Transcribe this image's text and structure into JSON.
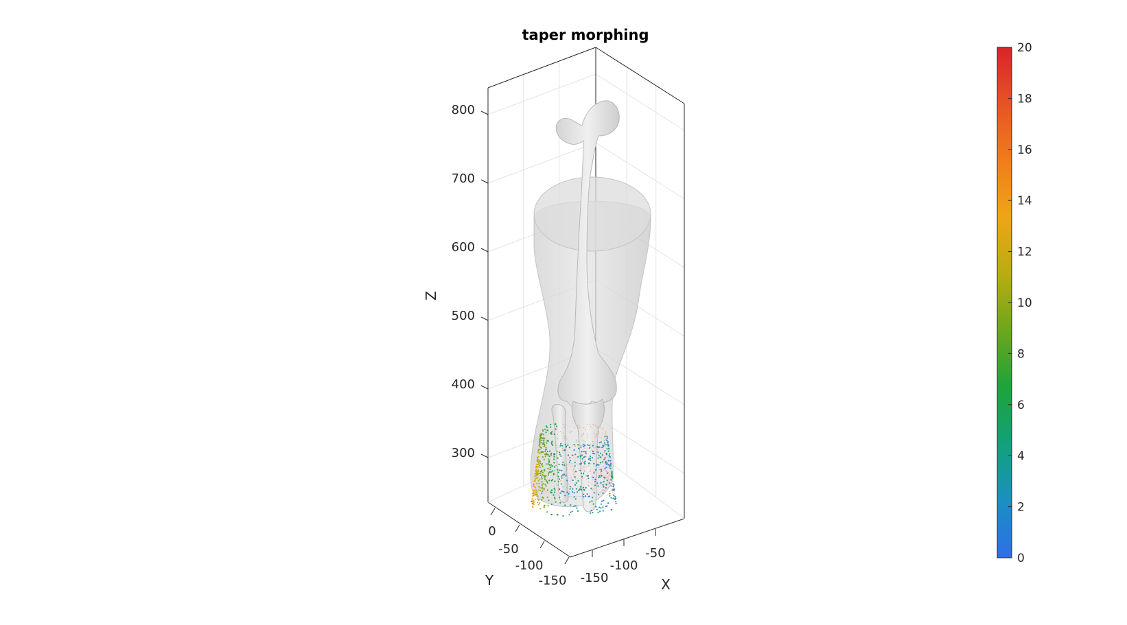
{
  "figure": {
    "title": "taper morphing"
  },
  "colors": {
    "surface_fill": "#d9d9d9",
    "surface_edge": "#bdbdbd",
    "bone_fill": "#e6e6e6",
    "axis": "#262626",
    "grid": "#e3e3e3"
  },
  "chart_data": {
    "type": "scatter",
    "title": "taper morphing",
    "xlabel": "X",
    "ylabel": "Y",
    "zlabel": "Z",
    "x_ticks": [
      "-150",
      "-100",
      "-50"
    ],
    "y_ticks": [
      "0",
      "-50",
      "-100",
      "-150"
    ],
    "z_ticks": [
      "300",
      "400",
      "500",
      "600",
      "700",
      "800"
    ],
    "zlim": [
      230,
      870
    ],
    "grid": true,
    "box": true,
    "colorbar": {
      "label": "",
      "range": [
        0,
        20
      ],
      "ticks": [
        "0",
        "2",
        "4",
        "6",
        "8",
        "10",
        "12",
        "14",
        "16",
        "18",
        "20"
      ],
      "colormap": [
        "#2e6fe8",
        "#1a8fc2",
        "#13a07a",
        "#1da43b",
        "#6aa71c",
        "#b9ac12",
        "#eea516",
        "#ef7d1c",
        "#e65424",
        "#d8242a"
      ]
    },
    "objects": [
      {
        "name": "limb-surface",
        "kind": "transparent-surface"
      },
      {
        "name": "femur",
        "kind": "bone-surface"
      },
      {
        "name": "tibia",
        "kind": "bone-surface"
      },
      {
        "name": "fibula",
        "kind": "bone-surface"
      },
      {
        "name": "taper-displacement-points",
        "kind": "colored-point-cloud",
        "value_range": [
          0,
          20
        ]
      }
    ]
  }
}
